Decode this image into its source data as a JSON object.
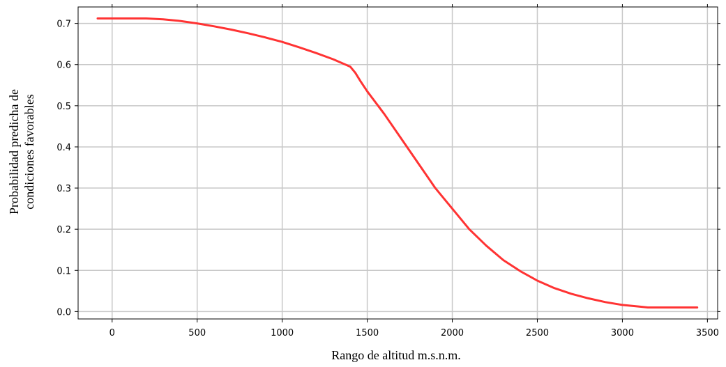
{
  "chart_data": {
    "type": "line",
    "title": "",
    "xlabel": "Rango de altitud m.s.n.m.",
    "ylabel_lines": [
      "Probabilidad predicha de",
      "condiciones favorables"
    ],
    "xlim": [
      -200,
      3560
    ],
    "ylim": [
      -0.018,
      0.74
    ],
    "x_ticks": [
      0,
      500,
      1000,
      1500,
      2000,
      2500,
      3000,
      3500
    ],
    "y_ticks": [
      0.0,
      0.1,
      0.2,
      0.3,
      0.4,
      0.5,
      0.6,
      0.7
    ],
    "grid": true,
    "legend": "none",
    "series": [
      {
        "color": "#ff3333",
        "x": [
          -85,
          0,
          100,
          200,
          300,
          400,
          500,
          600,
          700,
          800,
          900,
          1000,
          1100,
          1200,
          1300,
          1400,
          1430,
          1460,
          1500,
          1600,
          1700,
          1800,
          1900,
          2000,
          2100,
          2200,
          2300,
          2400,
          2500,
          2600,
          2700,
          2800,
          2900,
          3000,
          3100,
          3150,
          3200,
          3300,
          3440
        ],
        "y": [
          0.712,
          0.712,
          0.712,
          0.712,
          0.71,
          0.706,
          0.7,
          0.693,
          0.685,
          0.676,
          0.666,
          0.655,
          0.642,
          0.628,
          0.613,
          0.595,
          0.58,
          0.56,
          0.535,
          0.48,
          0.42,
          0.36,
          0.3,
          0.25,
          0.2,
          0.16,
          0.125,
          0.098,
          0.075,
          0.057,
          0.043,
          0.032,
          0.023,
          0.016,
          0.012,
          0.01,
          0.01,
          0.01,
          0.01
        ]
      }
    ]
  }
}
